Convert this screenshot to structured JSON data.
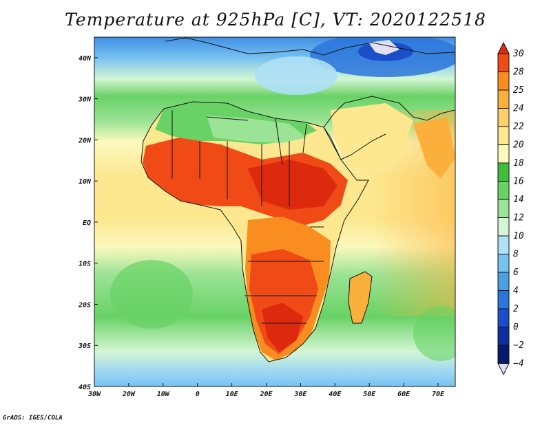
{
  "title": "Temperature at 925hPa [C], VT: 2020122518",
  "credit": "GrADS: IGES/COLA",
  "map": {
    "variable": "Temperature",
    "level": "925hPa",
    "units": "C",
    "valid_time": "2020122518",
    "lon_range": [
      -30,
      75
    ],
    "lat_range": [
      -40,
      45
    ],
    "lat_ticks": [
      {
        "value": 40,
        "label": "40N"
      },
      {
        "value": 30,
        "label": "30N"
      },
      {
        "value": 20,
        "label": "20N"
      },
      {
        "value": 10,
        "label": "10N"
      },
      {
        "value": 0,
        "label": "EQ"
      },
      {
        "value": -10,
        "label": "10S"
      },
      {
        "value": -20,
        "label": "20S"
      },
      {
        "value": -30,
        "label": "30S"
      },
      {
        "value": -40,
        "label": "40S"
      }
    ],
    "lon_ticks": [
      {
        "value": -30,
        "label": "30W"
      },
      {
        "value": -20,
        "label": "20W"
      },
      {
        "value": -10,
        "label": "10W"
      },
      {
        "value": 0,
        "label": "0"
      },
      {
        "value": 10,
        "label": "10E"
      },
      {
        "value": 20,
        "label": "20E"
      },
      {
        "value": 30,
        "label": "30E"
      },
      {
        "value": 40,
        "label": "40E"
      },
      {
        "value": 50,
        "label": "50E"
      },
      {
        "value": 60,
        "label": "60E"
      },
      {
        "value": 70,
        "label": "70E"
      }
    ]
  },
  "colorbar": {
    "levels": [
      30,
      28,
      25,
      24,
      22,
      20,
      18,
      16,
      14,
      12,
      10,
      8,
      6,
      4,
      2,
      0,
      -2,
      -4
    ],
    "labels": [
      "30",
      "28",
      "25",
      "24",
      "22",
      "20",
      "18",
      "16",
      "14",
      "12",
      "10",
      "8",
      "6",
      "4",
      "2",
      "0",
      "−2",
      "−4"
    ],
    "colors": [
      "#dd2a0e",
      "#f04a17",
      "#f98d1f",
      "#fcb03c",
      "#fbd06a",
      "#fde78f",
      "#fbf9bd",
      "#3fbe3c",
      "#68d265",
      "#9be395",
      "#d4f6d4",
      "#aee0f6",
      "#78c2f0",
      "#4c9ee5",
      "#2c76da",
      "#1b4fc8",
      "#0e2f9e",
      "#08186a",
      "#e2e0f4"
    ]
  }
}
